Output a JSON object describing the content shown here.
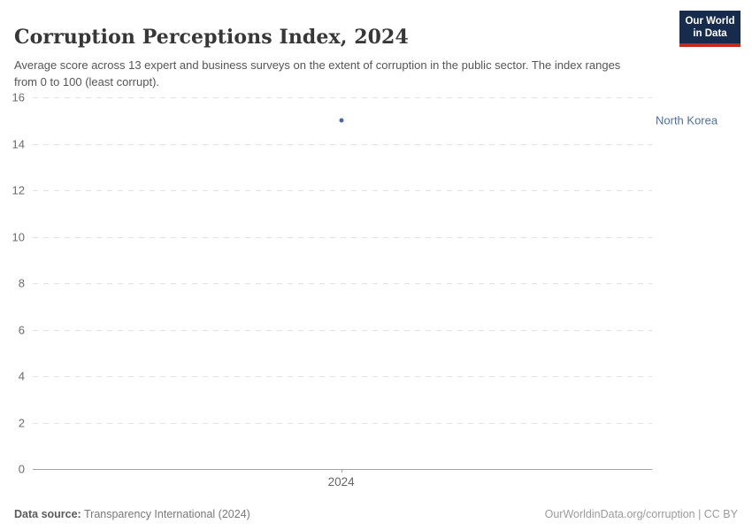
{
  "header": {
    "title": "Corruption Perceptions Index, 2024",
    "subtitle": "Average score across 13 expert and business surveys on the extent of corruption in the public sector. The index ranges from 0 to 100 (least corrupt).",
    "logo": {
      "line1": "Our World",
      "line2": "in Data"
    }
  },
  "chart_data": {
    "type": "scatter",
    "title": "Corruption Perceptions Index, 2024",
    "x": [
      2024
    ],
    "series": [
      {
        "name": "North Korea",
        "values": [
          15
        ]
      }
    ],
    "xlabel": "",
    "ylabel": "",
    "ylim": [
      0,
      16
    ],
    "yticks": [
      0,
      2,
      4,
      6,
      8,
      10,
      12,
      14,
      16
    ],
    "xticks": [
      "2024"
    ],
    "grid": "horizontal-dashed",
    "legend_position": "right-inline-label",
    "point_color": "#4c6a9e",
    "label_color": "#4a6fa5"
  },
  "colors": {
    "logo_bg": "#172b4d",
    "logo_stripe": "#c8281e",
    "gridline": "#e2e2e2",
    "axis": "#a3a3a3"
  },
  "footer": {
    "source_label": "Data source:",
    "source_value": "Transparency International (2024)",
    "license": "OurWorldinData.org/corruption | CC BY"
  }
}
